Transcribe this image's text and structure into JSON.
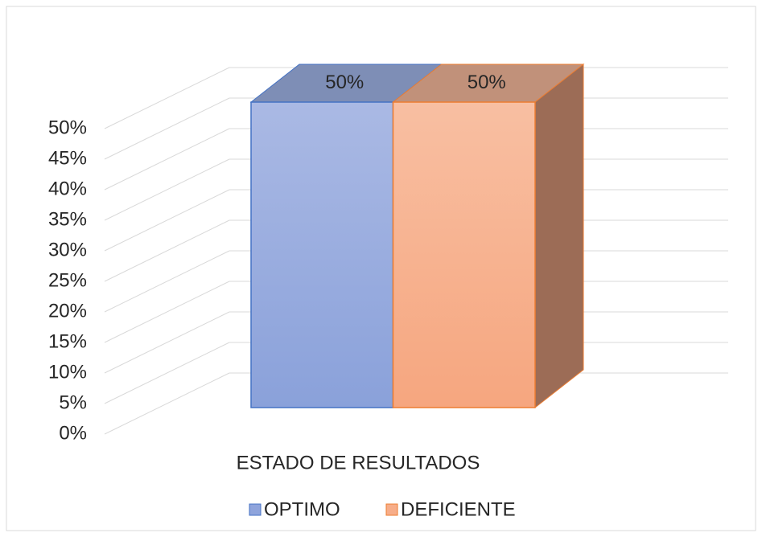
{
  "chart_data": {
    "type": "bar3d",
    "categories": [
      "ESTADO DE RESULTADOS"
    ],
    "series": [
      {
        "name": "OPTIMO",
        "color": "#8fa4dc",
        "values": [
          50
        ],
        "value_labels": [
          "50%"
        ]
      },
      {
        "name": "DEFICIENTE",
        "color": "#f7ad89",
        "values": [
          50
        ],
        "value_labels": [
          "50%"
        ]
      }
    ],
    "ylim": [
      0,
      50
    ],
    "yticks": [
      {
        "value": 0,
        "label": "0%"
      },
      {
        "value": 5,
        "label": "5%"
      },
      {
        "value": 10,
        "label": "10%"
      },
      {
        "value": 15,
        "label": "15%"
      },
      {
        "value": 20,
        "label": "20%"
      },
      {
        "value": 25,
        "label": "25%"
      },
      {
        "value": 30,
        "label": "30%"
      },
      {
        "value": 35,
        "label": "35%"
      },
      {
        "value": 40,
        "label": "40%"
      },
      {
        "value": 45,
        "label": "45%"
      },
      {
        "value": 50,
        "label": "50%"
      }
    ],
    "grid": true,
    "legend": "bottom"
  }
}
